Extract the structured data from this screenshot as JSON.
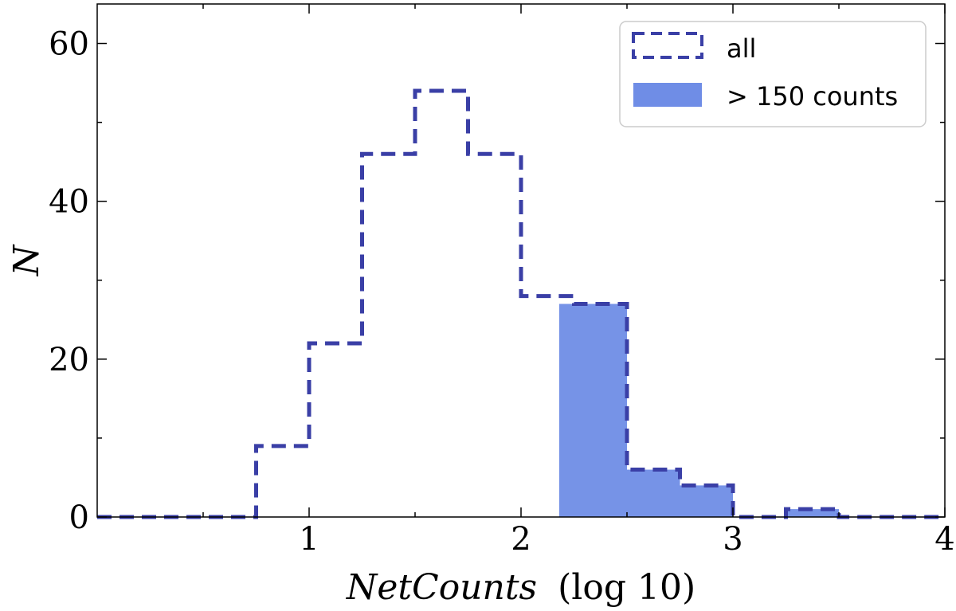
{
  "chart_data": {
    "type": "histogram",
    "xlabel": "NetCounts",
    "xlabel_suffix": "(log 10)",
    "ylabel": "N",
    "xlim": [
      0,
      4
    ],
    "ylim": [
      0,
      65
    ],
    "x_ticks": [
      1,
      2,
      3,
      4
    ],
    "y_ticks": [
      0,
      20,
      40,
      60
    ],
    "x_minor_ticks": [
      0.5,
      1.5,
      2.5,
      3.5
    ],
    "y_minor_ticks": [
      10,
      30,
      50
    ],
    "legend_position": "top-right",
    "series": [
      {
        "name": "all",
        "style": "dashed-step",
        "color": "#3a3fa6",
        "bins": [
          {
            "x0": 0.0,
            "x1": 0.25,
            "count": 0
          },
          {
            "x0": 0.25,
            "x1": 0.5,
            "count": 0
          },
          {
            "x0": 0.5,
            "x1": 0.75,
            "count": 0
          },
          {
            "x0": 0.75,
            "x1": 1.0,
            "count": 9
          },
          {
            "x0": 1.0,
            "x1": 1.25,
            "count": 22
          },
          {
            "x0": 1.25,
            "x1": 1.5,
            "count": 46
          },
          {
            "x0": 1.5,
            "x1": 1.75,
            "count": 54
          },
          {
            "x0": 1.75,
            "x1": 2.0,
            "count": 46
          },
          {
            "x0": 2.0,
            "x1": 2.25,
            "count": 28
          },
          {
            "x0": 2.25,
            "x1": 2.5,
            "count": 27
          },
          {
            "x0": 2.5,
            "x1": 2.75,
            "count": 6
          },
          {
            "x0": 2.75,
            "x1": 3.0,
            "count": 4
          },
          {
            "x0": 3.0,
            "x1": 3.25,
            "count": 0
          },
          {
            "x0": 3.25,
            "x1": 3.5,
            "count": 1
          },
          {
            "x0": 3.5,
            "x1": 3.75,
            "count": 0
          },
          {
            "x0": 3.75,
            "x1": 4.0,
            "count": 0
          }
        ]
      },
      {
        "name": "> 150 counts",
        "style": "filled",
        "color": "#6f8de6",
        "bins": [
          {
            "x0": 2.18,
            "x1": 2.5,
            "count": 27
          },
          {
            "x0": 2.5,
            "x1": 2.75,
            "count": 6
          },
          {
            "x0": 2.75,
            "x1": 3.0,
            "count": 4
          },
          {
            "x0": 3.25,
            "x1": 3.5,
            "count": 1
          }
        ]
      }
    ]
  }
}
